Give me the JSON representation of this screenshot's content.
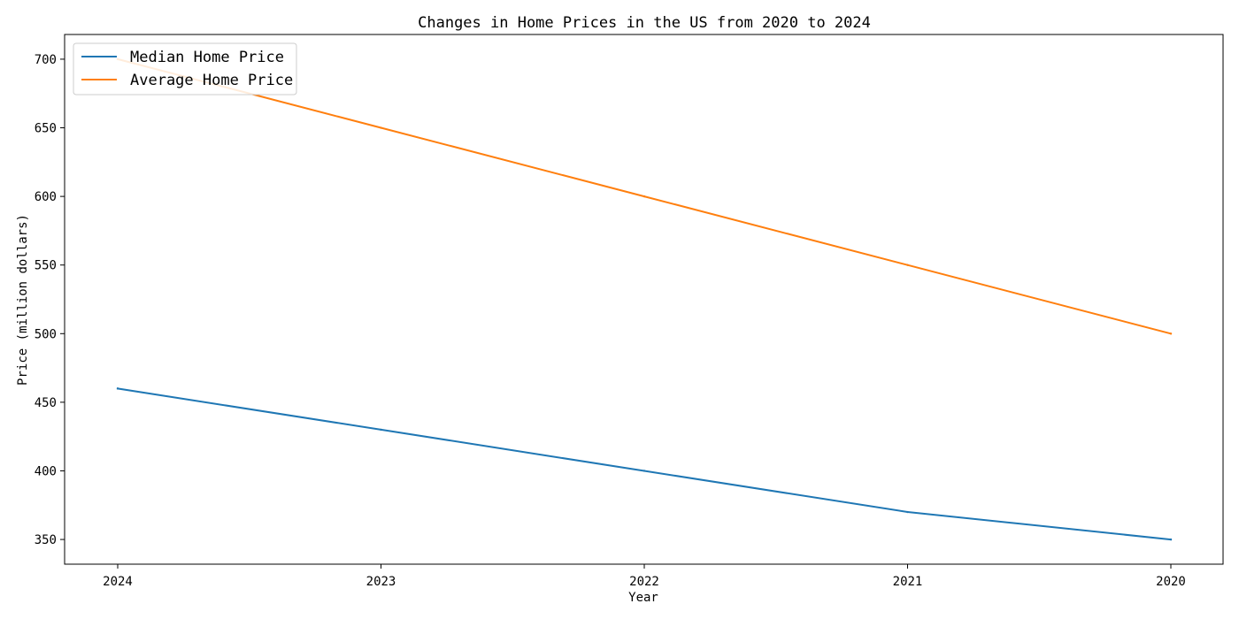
{
  "chart_data": {
    "type": "line",
    "title": "Changes in Home Prices in the US from 2020 to 2024",
    "xlabel": "Year",
    "ylabel": "Price (million dollars)",
    "x": [
      "2024",
      "2023",
      "2022",
      "2021",
      "2020"
    ],
    "ylim": [
      332,
      718
    ],
    "yticks": [
      350,
      400,
      450,
      500,
      550,
      600,
      650,
      700
    ],
    "grid": false,
    "legend_position": "top-left",
    "series": [
      {
        "name": "Median Home Price",
        "color": "#1f77b4",
        "values": [
          460,
          430,
          400,
          370,
          350
        ]
      },
      {
        "name": "Average Home Price",
        "color": "#ff7f0e",
        "values": [
          700,
          650,
          600,
          550,
          500
        ]
      }
    ]
  }
}
